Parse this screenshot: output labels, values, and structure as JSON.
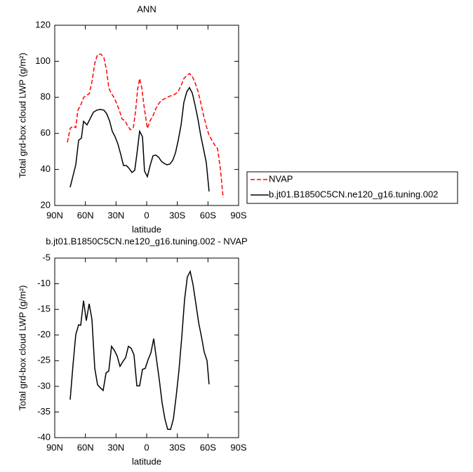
{
  "chart_data": [
    {
      "type": "line",
      "title": "ANN",
      "x_label": "latitude",
      "y_label": "Total grd-box cloud LWP (g/m²)",
      "xlim": [
        90,
        -90
      ],
      "ylim": [
        20,
        120
      ],
      "xticks": [
        {
          "value": 90,
          "label": "90N"
        },
        {
          "value": 60,
          "label": "60N"
        },
        {
          "value": 30,
          "label": "30N"
        },
        0,
        {
          "value": -30,
          "label": "30S"
        },
        {
          "value": -60,
          "label": "60S"
        },
        {
          "value": -90,
          "label": "90S"
        }
      ],
      "yticks": [
        20,
        40,
        60,
        80,
        100,
        120
      ],
      "series": [
        {
          "name": "NVAP",
          "color": "#ff0000",
          "style": "dashed",
          "x": [
            77.6,
            74.9,
            72.1,
            69.4,
            67.3,
            64.6,
            61.8,
            59.1,
            56.3,
            53.6,
            50.8,
            48.1,
            44.7,
            41.9,
            39.2,
            37.1,
            35.0,
            32.3,
            29.5,
            26.8,
            24.0,
            21.3,
            18.5,
            15.8,
            13.1,
            11.0,
            8.9,
            6.9,
            4.8,
            2.7,
            0.7,
            -0.7,
            -3.4,
            -6.2,
            -8.9,
            -11.7,
            -14.4,
            -17.2,
            -19.9,
            -22.7,
            -25.4,
            -28.2,
            -30.9,
            -33.7,
            -36.4,
            -39.2,
            -41.9,
            -44.7,
            -47.4,
            -50.2,
            -52.9,
            -55.6,
            -58.4,
            -61.1,
            -63.9,
            -66.6,
            -69.4,
            -72.1,
            -74.9
          ],
          "values": [
            55.0,
            62.8,
            64.0,
            63.2,
            72.9,
            75.6,
            79.9,
            81.1,
            81.9,
            88.5,
            99.0,
            103.7,
            104.0,
            102.1,
            94.7,
            85.4,
            82.6,
            80.2,
            76.8,
            72.9,
            67.9,
            67.1,
            64.0,
            62.0,
            63.2,
            71.7,
            84.2,
            90.4,
            85.4,
            75.6,
            67.9,
            62.8,
            67.1,
            69.8,
            73.7,
            76.4,
            78.4,
            79.1,
            79.9,
            80.7,
            81.1,
            81.9,
            83.4,
            86.5,
            90.4,
            92.0,
            93.2,
            91.6,
            88.1,
            83.4,
            77.2,
            70.2,
            64.0,
            58.9,
            56.2,
            53.5,
            51.5,
            40.6,
            24.3
          ]
        },
        {
          "name": "b.jt01.B1850C5CN.ne120_g16.tuning.002",
          "color": "#000000",
          "style": "solid",
          "x": [
            74.9,
            71.5,
            69.4,
            66.6,
            63.9,
            61.8,
            58.4,
            55.6,
            52.2,
            48.8,
            45.3,
            41.9,
            39.2,
            36.4,
            33.7,
            30.9,
            28.2,
            25.4,
            22.7,
            19.9,
            17.2,
            14.4,
            11.7,
            9.6,
            6.9,
            4.1,
            2.1,
            -0.7,
            -3.4,
            -6.2,
            -8.9,
            -11.7,
            -14.4,
            -17.2,
            -19.9,
            -22.7,
            -25.4,
            -28.2,
            -30.9,
            -33.7,
            -36.4,
            -39.2,
            -41.9,
            -44.7,
            -47.4,
            -50.2,
            -52.9,
            -55.6,
            -58.4,
            -61.1
          ],
          "values": [
            30.1,
            37.9,
            42.6,
            56.2,
            57.4,
            66.7,
            64.7,
            67.9,
            71.7,
            72.9,
            73.3,
            72.9,
            71.0,
            67.1,
            61.2,
            58.1,
            54.2,
            48.4,
            42.2,
            42.2,
            40.6,
            38.3,
            39.5,
            48.4,
            61.2,
            58.1,
            39.1,
            36.0,
            42.2,
            47.6,
            48.0,
            46.8,
            44.5,
            43.3,
            42.6,
            43.0,
            44.9,
            49.2,
            56.2,
            64.7,
            77.2,
            83.0,
            85.4,
            82.3,
            75.6,
            67.9,
            58.9,
            51.5,
            43.7,
            27.8
          ]
        }
      ]
    },
    {
      "type": "line",
      "title": "b.jt01.B1850C5CN.ne120_g16.tuning.002 - NVAP",
      "x_label": "latitude",
      "y_label": "Total grd-box cloud LWP (g/m²)",
      "xlim": [
        90,
        -90
      ],
      "ylim": [
        -40,
        -5
      ],
      "xticks": [
        {
          "value": 90,
          "label": "90N"
        },
        {
          "value": 60,
          "label": "60N"
        },
        {
          "value": 30,
          "label": "30N"
        },
        0,
        {
          "value": -30,
          "label": "30S"
        },
        {
          "value": -60,
          "label": "60S"
        },
        {
          "value": -90,
          "label": "90S"
        }
      ],
      "yticks": [
        -40,
        -35,
        -30,
        -25,
        -20,
        -15,
        -10,
        -5
      ],
      "series": [
        {
          "color": "#000000",
          "style": "solid",
          "x": [
            74.9,
            72.1,
            69.4,
            66.6,
            64.6,
            61.8,
            59.1,
            56.3,
            53.6,
            50.8,
            48.1,
            45.3,
            42.6,
            39.8,
            37.1,
            34.4,
            31.6,
            28.9,
            26.1,
            23.4,
            20.6,
            17.9,
            15.1,
            12.4,
            9.6,
            6.9,
            4.1,
            1.4,
            -1.4,
            -4.1,
            -6.9,
            -9.6,
            -12.4,
            -15.1,
            -17.9,
            -20.6,
            -23.4,
            -26.1,
            -28.9,
            -31.6,
            -34.4,
            -37.1,
            -39.8,
            -42.6,
            -45.3,
            -48.1,
            -50.9,
            -53.6,
            -56.3,
            -59.1,
            -61.1
          ],
          "values": [
            -32.6,
            -25.8,
            -19.9,
            -18.0,
            -18.1,
            -13.3,
            -17.2,
            -13.9,
            -16.9,
            -26.5,
            -29.7,
            -30.3,
            -30.8,
            -27.4,
            -27.0,
            -22.2,
            -23.0,
            -24.1,
            -26.1,
            -25.2,
            -24.4,
            -22.2,
            -22.6,
            -23.9,
            -29.9,
            -29.9,
            -26.7,
            -26.5,
            -24.8,
            -23.5,
            -20.7,
            -24.7,
            -28.8,
            -33.2,
            -36.4,
            -38.4,
            -38.4,
            -36.4,
            -31.9,
            -26.9,
            -20.3,
            -13.1,
            -8.7,
            -7.6,
            -10.1,
            -13.8,
            -17.6,
            -20.3,
            -23.3,
            -25.0,
            -29.6
          ]
        }
      ]
    }
  ]
}
